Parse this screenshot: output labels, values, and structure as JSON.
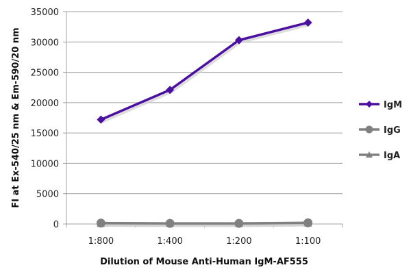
{
  "chart_data": {
    "type": "line",
    "title": "",
    "xlabel": "Dilution of Mouse Anti-Human IgM-AF555",
    "ylabel": "FI at Ex-540/25 nm & Em-590/20 nm",
    "categories": [
      "1:800",
      "1:400",
      "1:200",
      "1:100"
    ],
    "ylim": [
      0,
      35000
    ],
    "yticks": [
      0,
      5000,
      10000,
      15000,
      20000,
      25000,
      30000,
      35000
    ],
    "grid": true,
    "legend_position": "right",
    "series": [
      {
        "name": "IgM",
        "color": "#4B0FA0",
        "marker": "diamond",
        "values": [
          17200,
          22100,
          30300,
          33200
        ]
      },
      {
        "name": "IgG",
        "color": "#808080",
        "marker": "circle",
        "values": [
          150,
          100,
          100,
          200
        ]
      },
      {
        "name": "IgA",
        "color": "#808080",
        "marker": "triangle",
        "values": [
          100,
          80,
          80,
          150
        ]
      }
    ]
  }
}
